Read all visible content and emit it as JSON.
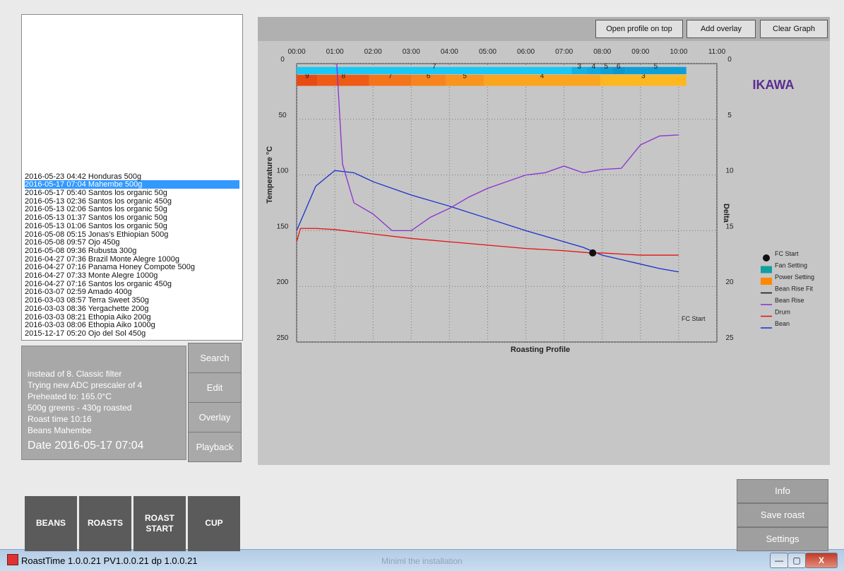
{
  "window": {
    "title": "RoastTime 1.0.0.21 PV1.0.0.21 dp 1.0.0.21",
    "ghost_text": "Miniml the installation",
    "min_label": "—",
    "max_label": "▢",
    "close_label": "X"
  },
  "roast_list": {
    "items": [
      "2015-12-17  05:20 Ojo del Sol 450g",
      "2016-03-03  08:06 Ethopia Aiko 1000g",
      "2016-03-03  08:21 Ethopia Aiko 200g",
      "2016-03-03  08:36 Yergachette 200g",
      "2016-03-03  08:57 Terra Sweet 350g",
      "2016-03-07  02:59 Amado 400g",
      "2016-04-27  07:16 Santos los organic 450g",
      "2016-04-27  07:33 Monte Alegre 1000g",
      "2016-04-27  07:16 Panama Honey Compote 500g",
      "2016-04-27  07:36 Brazil Monte Alegre 1000g",
      "2016-05-08  09:36 Rubusta 300g",
      "2016-05-08  09:57 Ojo 450g",
      "2016-05-08  05:15 Jonas's Ethiopian 500g",
      "2016-05-13  01:06 Santos los organic 50g",
      "2016-05-13  01:37 Santos los organic 50g",
      "2016-05-13  02:06 Santos los organic 50g",
      "2016-05-13  02:36 Santos los organic 450g",
      "2016-05-17  05:40 Santos los organic 50g",
      "2016-05-17  07:04 Mahembe 500g",
      "2016-05-23  04:42 Honduras 500g"
    ],
    "selected_index": 18
  },
  "notes": {
    "date": "Date 2016-05-17  07:04",
    "beans": "Beans Mahembe",
    "roast_time": "Roast time 10:16",
    "greens": "500g greens - 430g roasted",
    "preheated": "Preheated to: 165.0°C",
    "adc": "Trying new ADC prescaler of 4",
    "filter": "instead of 8. Classic filter"
  },
  "side_buttons": {
    "search": "Search",
    "edit": "Edit",
    "overlay": "Overlay",
    "playback": "Playback"
  },
  "main_buttons": {
    "beans": "BEANS",
    "roasts": "ROASTS",
    "start_roast_line1": "START",
    "start_roast_line2": "ROAST",
    "cup": "CUP"
  },
  "right_buttons": {
    "info": "Info",
    "save_roast": "Save roast",
    "settings": "Settings"
  },
  "toolbar": {
    "open_profile": "Open profile on top",
    "add_overlay": "Add overlay",
    "clear_graph": "Clear Graph"
  },
  "logo": "IKAWA",
  "chart_data": {
    "type": "line",
    "title": "Roasting Profile",
    "xlabel": "",
    "ylabel": "Temperature °C",
    "y2label": "Delta",
    "x_ticks": [
      "00:00",
      "01:00",
      "02:00",
      "03:00",
      "04:00",
      "05:00",
      "06:00",
      "07:00",
      "08:00",
      "09:00",
      "10:00",
      "11:00"
    ],
    "y_ticks": [
      "0",
      "50",
      "100",
      "150",
      "200",
      "250"
    ],
    "y2_ticks": [
      "0",
      "5",
      "10",
      "15",
      "20",
      "25"
    ],
    "xlim": [
      0,
      11
    ],
    "ylim": [
      0,
      250
    ],
    "y2lim": [
      0,
      25
    ],
    "fc_start_label": "FC Start",
    "series": [
      {
        "name": "Bean",
        "color": "#1a2fd1",
        "axis": "temp",
        "x": [
          0,
          0.5,
          1,
          1.5,
          2,
          3,
          4,
          5,
          6,
          7,
          7.5,
          8,
          8.5,
          9,
          9.5,
          10
        ],
        "y": [
          150,
          110,
          96,
          98,
          106,
          118,
          128,
          139,
          150,
          160,
          165,
          172,
          176,
          180,
          184,
          187
        ]
      },
      {
        "name": "Drum",
        "color": "#e81010",
        "axis": "temp",
        "x": [
          0,
          0.1,
          0.5,
          1,
          2,
          3,
          4,
          5,
          6,
          7,
          7.7,
          8,
          9,
          10
        ],
        "y": [
          160,
          148,
          148,
          149,
          153,
          157,
          160,
          163,
          166,
          168,
          170,
          170,
          172,
          172
        ]
      },
      {
        "name": "Bean Rise",
        "color": "#8a2fd1",
        "axis": "delta",
        "x": [
          1.05,
          1.2,
          1.5,
          2,
          2.5,
          3,
          3.5,
          4,
          4.5,
          5,
          5.5,
          6,
          6.5,
          7,
          7.5,
          8,
          8.5,
          9,
          9.5,
          10
        ],
        "y": [
          0,
          9,
          12.5,
          13.5,
          15,
          15,
          13.8,
          13,
          12,
          11.2,
          10.6,
          10,
          9.8,
          9.2,
          9.8,
          9.5,
          9.4,
          7.3,
          6.5,
          6.4
        ]
      },
      {
        "name": "Bean Rise Fit",
        "color": "#111111",
        "axis": "delta",
        "x": [],
        "y": []
      },
      {
        "name": "Power Setting",
        "color": "#ff8800",
        "axis": "band",
        "x": [
          0,
          1,
          2,
          3,
          4,
          5,
          6,
          7,
          8,
          9,
          10
        ],
        "y": [
          9,
          8,
          8,
          7,
          6,
          5,
          4,
          4,
          4,
          3,
          3
        ]
      },
      {
        "name": "Fan Setting",
        "color": "#19c8f5",
        "axis": "band",
        "x": [
          0,
          1,
          2,
          3,
          4,
          5,
          6,
          7,
          7.5,
          8,
          9,
          10
        ],
        "y": [
          7,
          7,
          7,
          7,
          7,
          7,
          7,
          3,
          4,
          5,
          6,
          5
        ]
      }
    ],
    "fc_start": {
      "x": 7.75,
      "y": 170
    },
    "power_bands": [
      {
        "x0": 0,
        "x1": 0.55,
        "label": "9",
        "color": "#e84a12"
      },
      {
        "x0": 0.55,
        "x1": 1.9,
        "label": "8",
        "color": "#ef5a14"
      },
      {
        "x0": 1.9,
        "x1": 3.0,
        "label": "7",
        "color": "#f4741a"
      },
      {
        "x0": 3.0,
        "x1": 3.9,
        "label": "6",
        "color": "#f7841c"
      },
      {
        "x0": 3.9,
        "x1": 4.9,
        "label": "5",
        "color": "#f9941e"
      },
      {
        "x0": 4.9,
        "x1": 7.95,
        "label": "4",
        "color": "#fba51f"
      },
      {
        "x0": 7.95,
        "x1": 10.2,
        "label": "3",
        "color": "#fdb820"
      }
    ],
    "fan_bands": [
      {
        "x0": 0,
        "x1": 7.2,
        "label": "7",
        "color": "#19c8f5"
      },
      {
        "x0": 7.2,
        "x1": 7.6,
        "label": "3",
        "color": "#12b2e6"
      },
      {
        "x0": 7.6,
        "x1": 7.95,
        "label": "4",
        "color": "#10a8e0"
      },
      {
        "x0": 7.95,
        "x1": 8.25,
        "label": "5",
        "color": "#0e9fd8"
      },
      {
        "x0": 8.25,
        "x1": 8.6,
        "label": "6",
        "color": "#0c97d0"
      },
      {
        "x0": 8.6,
        "x1": 10.2,
        "label": "5",
        "color": "#0e9fd8"
      }
    ],
    "legend": {
      "placement": "bottom-right",
      "entries": [
        "FC Start",
        "Fan Setting",
        "Power Setting",
        "Bean Rise Fit",
        "Bean Rise",
        "Drum",
        "Bean"
      ]
    }
  }
}
